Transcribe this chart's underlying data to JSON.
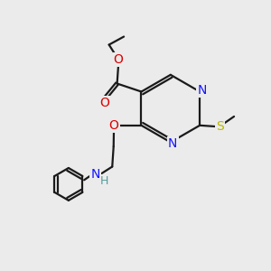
{
  "bg_color": "#ebebeb",
  "bond_color": "#1a1a1a",
  "N_color": "#1414ff",
  "O_color": "#dd0000",
  "S_color": "#b8b800",
  "H_color": "#5a9a9a",
  "line_width": 1.6,
  "font_size": 10,
  "dbo": 0.055,
  "figsize": [
    3.0,
    3.0
  ],
  "dpi": 100,
  "xlim": [
    0,
    10
  ],
  "ylim": [
    0,
    10
  ]
}
